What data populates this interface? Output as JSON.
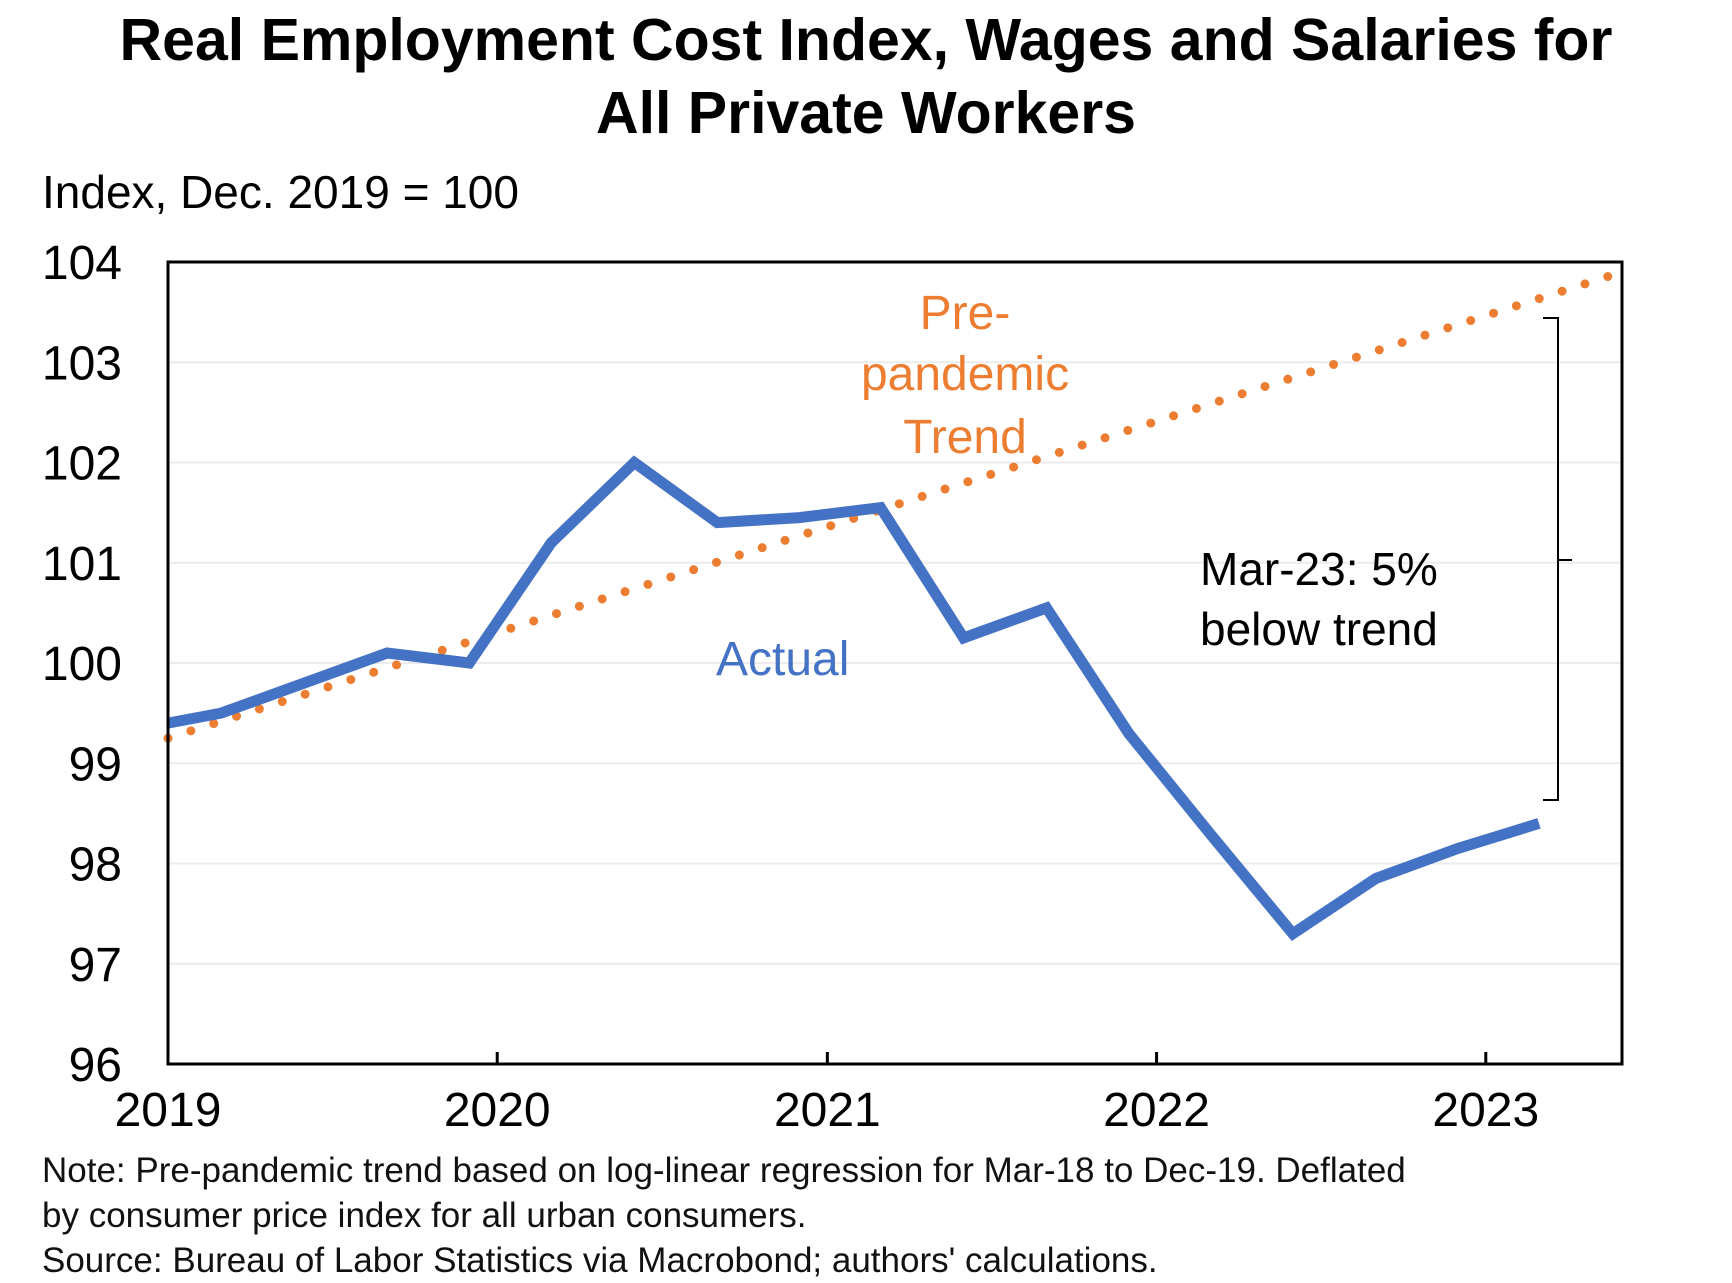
{
  "header": {
    "title_line1": "Real Employment  Cost Index, Wages and Salaries for",
    "title_line2": "All Private Workers",
    "unit_label": "Index, Dec. 2019 = 100"
  },
  "footer": {
    "note_line1": "Note: Pre-pandemic trend based on log-linear regression for Mar-18 to Dec-19. Deflated",
    "note_line2": "by consumer price index for all urban consumers.",
    "source": "Source: Bureau of Labor Statistics via Macrobond; authors' calculations."
  },
  "chart_data": {
    "type": "line",
    "title": "Real Employment  Cost Index, Wages and Salaries for All Private Workers",
    "ylabel": "Index, Dec. 2019 = 100",
    "xlabel": "",
    "ylim": [
      96,
      104
    ],
    "xlim": [
      "2019-01-01",
      "2023-06-01"
    ],
    "yticks": [
      "96",
      "97",
      "98",
      "99",
      "100",
      "101",
      "102",
      "103",
      "104"
    ],
    "xticks": [
      "2019",
      "2020",
      "2021",
      "2022",
      "2023"
    ],
    "grid": true,
    "series": [
      {
        "name": "Actual",
        "color": "#4472c4",
        "style": "solid",
        "points": [
          {
            "x": "2019-01-01",
            "y": 99.4
          },
          {
            "x": "2019-03-01",
            "y": 99.5
          },
          {
            "x": "2019-06-01",
            "y": 99.8
          },
          {
            "x": "2019-09-01",
            "y": 100.1
          },
          {
            "x": "2019-12-01",
            "y": 100.0
          },
          {
            "x": "2020-03-01",
            "y": 101.2
          },
          {
            "x": "2020-06-01",
            "y": 102.0
          },
          {
            "x": "2020-09-01",
            "y": 101.4
          },
          {
            "x": "2020-12-01",
            "y": 101.45
          },
          {
            "x": "2021-03-01",
            "y": 101.55
          },
          {
            "x": "2021-06-01",
            "y": 100.25
          },
          {
            "x": "2021-09-01",
            "y": 100.55
          },
          {
            "x": "2021-12-01",
            "y": 99.3
          },
          {
            "x": "2022-03-01",
            "y": 98.3
          },
          {
            "x": "2022-06-01",
            "y": 97.3
          },
          {
            "x": "2022-09-01",
            "y": 97.85
          },
          {
            "x": "2022-12-01",
            "y": 98.15
          },
          {
            "x": "2023-03-01",
            "y": 98.4
          }
        ]
      },
      {
        "name": "Pre-pandemic Trend",
        "color": "#ed7d31",
        "style": "dotted",
        "points": [
          {
            "x": "2019-01-01",
            "y": 99.25
          },
          {
            "x": "2023-06-01",
            "y": 103.9
          }
        ]
      }
    ],
    "annotations": [
      {
        "text_line1": "Pre-",
        "text_line2": "pandemic",
        "text_line3": "Trend",
        "color": "#ed7d31"
      },
      {
        "text": "Actual",
        "color": "#4472c4"
      },
      {
        "text_line1": "Mar-23: 5%",
        "text_line2": "below trend",
        "color": "#000000"
      }
    ]
  }
}
